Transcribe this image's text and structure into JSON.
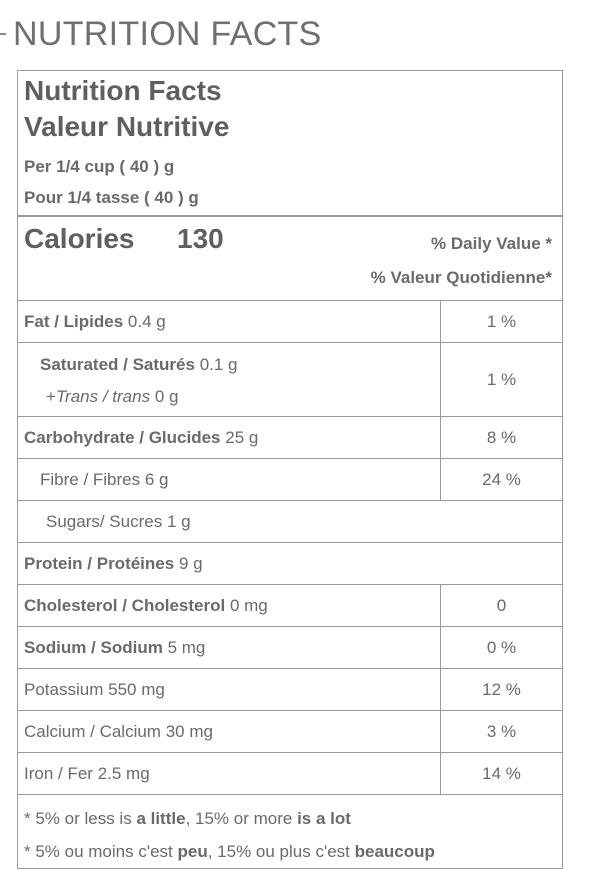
{
  "page_heading": "NUTRITION FACTS",
  "header": {
    "title_en": "Nutrition Facts",
    "title_fr": "Valeur Nutritive",
    "serving_en": "Per 1/4 cup ( 40 ) g",
    "serving_fr": "Pour 1/4 tasse ( 40 ) g"
  },
  "calories": {
    "label": "Calories",
    "value": "130",
    "dv_en": "% Daily Value *",
    "dv_fr": "% Valeur Quotidienne*"
  },
  "rows": {
    "fat": {
      "name": "Fat / Lipides",
      "amount": "0.4 g",
      "dv": "1 %"
    },
    "saturated": {
      "name": "Saturated / Saturés",
      "amount": "0.1 g",
      "dv": "1 %"
    },
    "trans": {
      "prefix": "+",
      "name": "Trans / trans",
      "amount": "0 g"
    },
    "carbohydrate": {
      "name": "Carbohydrate / Glucides",
      "amount": "25 g",
      "dv": "8 %"
    },
    "fibre": {
      "name": "Fibre / Fibres",
      "amount": "6 g",
      "dv": "24 %"
    },
    "sugars": {
      "name": "Sugars/ Sucres",
      "amount": "1 g"
    },
    "protein": {
      "name": "Protein / Protéines",
      "amount": "9 g"
    },
    "cholesterol": {
      "name": "Cholesterol / Cholesterol",
      "amount": "0 mg",
      "dv": "0"
    },
    "sodium": {
      "name": "Sodium / Sodium",
      "amount": "5 mg",
      "dv": "0 %"
    },
    "potassium": {
      "name": "Potassium",
      "amount": "550 mg",
      "dv": "12 %"
    },
    "calcium": {
      "name": "Calcium / Calcium",
      "amount": "30 mg",
      "dv": "3 %"
    },
    "iron": {
      "name": "Iron / Fer",
      "amount": "2.5 mg",
      "dv": "14 %"
    }
  },
  "footnote": {
    "en": {
      "part1": "* 5% or less is ",
      "part2": "a little",
      "part3": ", 15% or more ",
      "part4": "is a lot"
    },
    "fr": {
      "part1": "* 5% ou moins c'est ",
      "part2": "peu",
      "part3": ", 15% ou plus c'est ",
      "part4": "beaucoup"
    }
  }
}
